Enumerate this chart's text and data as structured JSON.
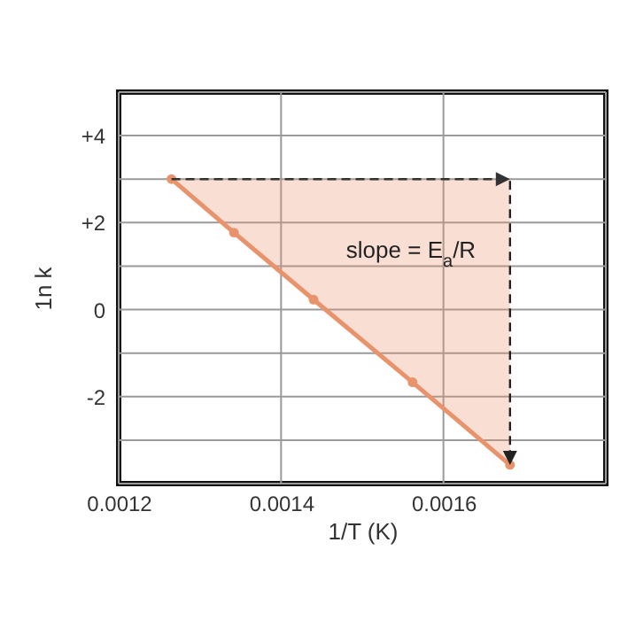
{
  "chart_data": {
    "type": "line",
    "xlabel": "1/T (K)",
    "ylabel": "1n k",
    "series": [
      {
        "color": "#e8936c",
        "x": [
          0.001265,
          0.001342,
          0.00144,
          0.001562,
          0.001682
        ],
        "values": [
          3.0,
          1.77,
          0.23,
          -1.67,
          -3.57
        ],
        "lower": [
          3.0,
          1.77,
          0.23,
          -1.67,
          -3.57
        ],
        "upper": [
          3.0,
          3.0,
          3.0,
          3.0,
          3.0
        ]
      }
    ],
    "xlim": [
      0.0012,
      0.0018
    ],
    "xticks": [
      0.0012,
      0.0014,
      0.0016,
      {
        "value": 0.0018,
        "label": null
      }
    ],
    "ylim": [
      -4,
      5
    ],
    "yticks": [
      {
        "value": -4,
        "label": null
      },
      {
        "value": -3,
        "label": null
      },
      "-2",
      {
        "value": -1,
        "label": null
      },
      0,
      {
        "value": 1,
        "label": null
      },
      {
        "value": 2,
        "label": "+2"
      },
      {
        "value": 3,
        "label": null
      },
      {
        "value": 4,
        "label": "+4"
      },
      {
        "value": 5,
        "label": null
      }
    ],
    "grid": true,
    "marker": "circle",
    "line_style": "solid",
    "annotations": [
      "slope = E$_{a}$/R"
    ]
  }
}
